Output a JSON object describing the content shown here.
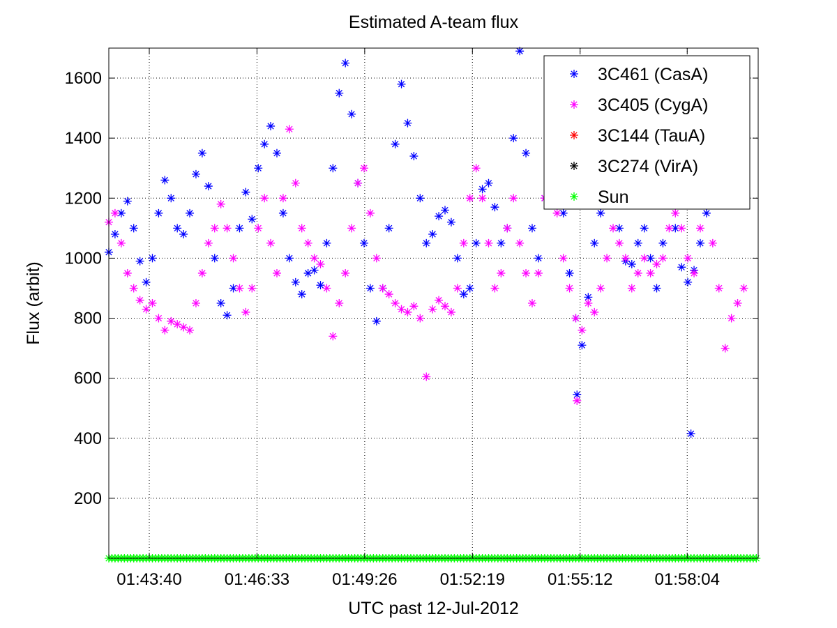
{
  "chart_data": {
    "type": "scatter",
    "title": "Estimated A-team flux",
    "xlabel": "UTC past 12-Jul-2012",
    "ylabel": "Flux (arbit)",
    "x_unit": "UTC time",
    "xlim": [
      "01:42:35",
      "01:59:58"
    ],
    "ylim": [
      0,
      1700
    ],
    "x_ticks": [
      "01:43:40",
      "01:46:33",
      "01:49:26",
      "01:52:19",
      "01:55:12",
      "01:58:04"
    ],
    "y_ticks": [
      200,
      400,
      600,
      800,
      1000,
      1200,
      1400,
      1600
    ],
    "grid": true,
    "marker": "*",
    "legend_position": "top-right",
    "series": [
      {
        "name": "3C461 (CasA)",
        "color": "#0000ff",
        "points": [
          [
            "01:42:35",
            1020
          ],
          [
            "01:42:45",
            1080
          ],
          [
            "01:42:55",
            1150
          ],
          [
            "01:43:05",
            1190
          ],
          [
            "01:43:15",
            1100
          ],
          [
            "01:43:25",
            990
          ],
          [
            "01:43:35",
            920
          ],
          [
            "01:43:45",
            1000
          ],
          [
            "01:43:55",
            1150
          ],
          [
            "01:44:05",
            1260
          ],
          [
            "01:44:15",
            1200
          ],
          [
            "01:44:25",
            1100
          ],
          [
            "01:44:35",
            1080
          ],
          [
            "01:44:45",
            1150
          ],
          [
            "01:44:55",
            1280
          ],
          [
            "01:45:05",
            1350
          ],
          [
            "01:45:15",
            1240
          ],
          [
            "01:45:25",
            1000
          ],
          [
            "01:45:35",
            850
          ],
          [
            "01:45:45",
            810
          ],
          [
            "01:45:55",
            900
          ],
          [
            "01:46:05",
            1100
          ],
          [
            "01:46:15",
            1220
          ],
          [
            "01:46:25",
            1130
          ],
          [
            "01:46:35",
            1300
          ],
          [
            "01:46:45",
            1380
          ],
          [
            "01:46:55",
            1440
          ],
          [
            "01:47:05",
            1350
          ],
          [
            "01:47:15",
            1150
          ],
          [
            "01:47:25",
            1000
          ],
          [
            "01:47:35",
            920
          ],
          [
            "01:47:45",
            880
          ],
          [
            "01:47:55",
            950
          ],
          [
            "01:48:05",
            960
          ],
          [
            "01:48:15",
            910
          ],
          [
            "01:48:25",
            1050
          ],
          [
            "01:48:35",
            1300
          ],
          [
            "01:48:45",
            1550
          ],
          [
            "01:48:55",
            1650
          ],
          [
            "01:49:05",
            1480
          ],
          [
            "01:49:15",
            1250
          ],
          [
            "01:49:25",
            1050
          ],
          [
            "01:49:35",
            900
          ],
          [
            "01:49:45",
            790
          ],
          [
            "01:49:55",
            900
          ],
          [
            "01:50:05",
            1100
          ],
          [
            "01:50:15",
            1380
          ],
          [
            "01:50:25",
            1580
          ],
          [
            "01:50:35",
            1450
          ],
          [
            "01:50:45",
            1340
          ],
          [
            "01:50:55",
            1200
          ],
          [
            "01:51:05",
            1050
          ],
          [
            "01:51:15",
            1080
          ],
          [
            "01:51:25",
            1140
          ],
          [
            "01:51:35",
            1160
          ],
          [
            "01:51:45",
            1120
          ],
          [
            "01:51:55",
            1000
          ],
          [
            "01:52:05",
            880
          ],
          [
            "01:52:15",
            900
          ],
          [
            "01:52:25",
            1050
          ],
          [
            "01:52:35",
            1230
          ],
          [
            "01:52:45",
            1250
          ],
          [
            "01:52:55",
            1170
          ],
          [
            "01:53:05",
            1050
          ],
          [
            "01:53:15",
            1100
          ],
          [
            "01:53:25",
            1400
          ],
          [
            "01:53:35",
            1690
          ],
          [
            "01:53:45",
            1350
          ],
          [
            "01:53:55",
            1100
          ],
          [
            "01:54:05",
            1000
          ],
          [
            "01:54:15",
            1200
          ],
          [
            "01:54:25",
            1460
          ],
          [
            "01:54:35",
            1400
          ],
          [
            "01:54:45",
            1150
          ],
          [
            "01:54:55",
            950
          ],
          [
            "01:55:05",
            800
          ],
          [
            "01:55:07",
            545
          ],
          [
            "01:55:15",
            710
          ],
          [
            "01:55:25",
            870
          ],
          [
            "01:55:35",
            1050
          ],
          [
            "01:55:45",
            1150
          ],
          [
            "01:55:55",
            1200
          ],
          [
            "01:56:05",
            1180
          ],
          [
            "01:56:15",
            1100
          ],
          [
            "01:56:25",
            990
          ],
          [
            "01:56:35",
            980
          ],
          [
            "01:56:45",
            1050
          ],
          [
            "01:56:55",
            1100
          ],
          [
            "01:57:05",
            1000
          ],
          [
            "01:57:15",
            900
          ],
          [
            "01:57:25",
            1050
          ],
          [
            "01:57:35",
            1200
          ],
          [
            "01:57:45",
            1100
          ],
          [
            "01:57:55",
            970
          ],
          [
            "01:58:05",
            920
          ],
          [
            "01:58:10",
            415
          ],
          [
            "01:58:15",
            960
          ],
          [
            "01:58:25",
            1050
          ],
          [
            "01:58:35",
            1150
          ],
          [
            "01:58:45",
            1200
          ],
          [
            "01:58:55",
            1220
          ],
          [
            "01:59:05",
            1230
          ]
        ]
      },
      {
        "name": "3C405 (CygA)",
        "color": "#ff00ff",
        "points": [
          [
            "01:42:35",
            1120
          ],
          [
            "01:42:45",
            1150
          ],
          [
            "01:42:55",
            1050
          ],
          [
            "01:43:05",
            950
          ],
          [
            "01:43:15",
            900
          ],
          [
            "01:43:25",
            860
          ],
          [
            "01:43:35",
            830
          ],
          [
            "01:43:45",
            850
          ],
          [
            "01:43:55",
            800
          ],
          [
            "01:44:05",
            760
          ],
          [
            "01:44:15",
            790
          ],
          [
            "01:44:25",
            780
          ],
          [
            "01:44:35",
            770
          ],
          [
            "01:44:45",
            760
          ],
          [
            "01:44:55",
            850
          ],
          [
            "01:45:05",
            950
          ],
          [
            "01:45:15",
            1050
          ],
          [
            "01:45:25",
            1100
          ],
          [
            "01:45:35",
            1180
          ],
          [
            "01:45:45",
            1100
          ],
          [
            "01:45:55",
            1000
          ],
          [
            "01:46:05",
            900
          ],
          [
            "01:46:15",
            820
          ],
          [
            "01:46:25",
            900
          ],
          [
            "01:46:35",
            1100
          ],
          [
            "01:46:45",
            1200
          ],
          [
            "01:46:55",
            1050
          ],
          [
            "01:47:05",
            950
          ],
          [
            "01:47:15",
            1200
          ],
          [
            "01:47:25",
            1430
          ],
          [
            "01:47:35",
            1250
          ],
          [
            "01:47:45",
            1100
          ],
          [
            "01:47:55",
            1050
          ],
          [
            "01:48:05",
            1000
          ],
          [
            "01:48:15",
            980
          ],
          [
            "01:48:25",
            900
          ],
          [
            "01:48:35",
            740
          ],
          [
            "01:48:45",
            850
          ],
          [
            "01:48:55",
            950
          ],
          [
            "01:49:05",
            1100
          ],
          [
            "01:49:15",
            1250
          ],
          [
            "01:49:25",
            1300
          ],
          [
            "01:49:35",
            1150
          ],
          [
            "01:49:45",
            1000
          ],
          [
            "01:49:55",
            900
          ],
          [
            "01:50:05",
            880
          ],
          [
            "01:50:15",
            850
          ],
          [
            "01:50:25",
            830
          ],
          [
            "01:50:35",
            820
          ],
          [
            "01:50:45",
            840
          ],
          [
            "01:50:55",
            800
          ],
          [
            "01:51:05",
            605
          ],
          [
            "01:51:15",
            830
          ],
          [
            "01:51:25",
            860
          ],
          [
            "01:51:35",
            840
          ],
          [
            "01:51:45",
            820
          ],
          [
            "01:51:55",
            900
          ],
          [
            "01:52:05",
            1050
          ],
          [
            "01:52:15",
            1200
          ],
          [
            "01:52:25",
            1300
          ],
          [
            "01:52:35",
            1200
          ],
          [
            "01:52:45",
            1050
          ],
          [
            "01:52:55",
            900
          ],
          [
            "01:53:05",
            950
          ],
          [
            "01:53:15",
            1100
          ],
          [
            "01:53:25",
            1200
          ],
          [
            "01:53:35",
            1050
          ],
          [
            "01:53:45",
            950
          ],
          [
            "01:53:55",
            850
          ],
          [
            "01:54:05",
            950
          ],
          [
            "01:54:15",
            1200
          ],
          [
            "01:54:25",
            1330
          ],
          [
            "01:54:35",
            1150
          ],
          [
            "01:54:45",
            1000
          ],
          [
            "01:54:55",
            900
          ],
          [
            "01:55:05",
            800
          ],
          [
            "01:55:07",
            525
          ],
          [
            "01:55:15",
            760
          ],
          [
            "01:55:25",
            850
          ],
          [
            "01:55:35",
            820
          ],
          [
            "01:55:45",
            900
          ],
          [
            "01:55:55",
            1000
          ],
          [
            "01:56:05",
            1100
          ],
          [
            "01:56:15",
            1050
          ],
          [
            "01:56:25",
            1000
          ],
          [
            "01:56:35",
            900
          ],
          [
            "01:56:45",
            950
          ],
          [
            "01:56:55",
            1000
          ],
          [
            "01:57:05",
            950
          ],
          [
            "01:57:15",
            980
          ],
          [
            "01:57:25",
            1000
          ],
          [
            "01:57:35",
            1100
          ],
          [
            "01:57:45",
            1150
          ],
          [
            "01:57:55",
            1100
          ],
          [
            "01:58:05",
            1000
          ],
          [
            "01:58:15",
            950
          ],
          [
            "01:58:25",
            1100
          ],
          [
            "01:58:35",
            1180
          ],
          [
            "01:58:45",
            1050
          ],
          [
            "01:58:55",
            900
          ],
          [
            "01:59:05",
            700
          ],
          [
            "01:59:15",
            800
          ],
          [
            "01:59:25",
            850
          ],
          [
            "01:59:35",
            900
          ]
        ]
      },
      {
        "name": "3C144 (TauA)",
        "color": "#ff0000",
        "points": []
      },
      {
        "name": "3C274 (VirA)",
        "color": "#000000",
        "points": []
      },
      {
        "name": "Sun",
        "color": "#00ff00",
        "constant_value": 0,
        "x_range": [
          "01:42:35",
          "01:59:58"
        ],
        "sampling_interval_seconds": 5
      }
    ]
  }
}
